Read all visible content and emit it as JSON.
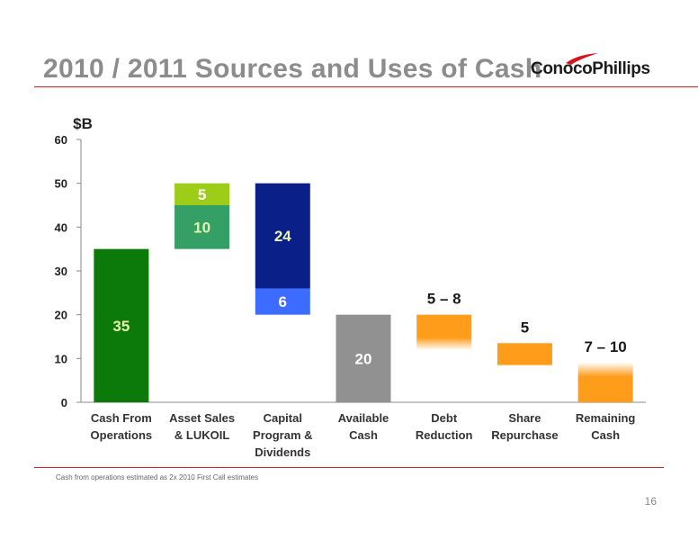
{
  "slide": {
    "title": "2010 / 2011 Sources and Uses of Cash",
    "logo_text": "ConocoPhillips",
    "footnote": "Cash from operations estimated as 2x 2010 First Call estimates",
    "page_number": "16"
  },
  "chart_data": {
    "type": "bar",
    "subtype": "waterfall",
    "ylabel": "$B",
    "ylim": [
      0,
      60
    ],
    "yticks": [
      0,
      10,
      20,
      30,
      40,
      50,
      60
    ],
    "categories": [
      [
        "Cash From",
        "Operations"
      ],
      [
        "Asset Sales",
        "& LUKOIL"
      ],
      [
        "Capital",
        "Program &",
        "Dividends"
      ],
      [
        "Available",
        "Cash"
      ],
      [
        "Debt",
        "Reduction"
      ],
      [
        "Share",
        "Repurchase"
      ],
      [
        "Remaining",
        "Cash"
      ]
    ],
    "segments": [
      {
        "category": 0,
        "bottom": 0,
        "top": 35,
        "label": "35",
        "color": "#0b7a0b",
        "label_color": "#e8f3b0",
        "label_pos": "inside"
      },
      {
        "category": 1,
        "bottom": 35,
        "top": 45,
        "label": "10",
        "color": "#35a065",
        "label_color": "#e8f3b0",
        "label_pos": "inside"
      },
      {
        "category": 1,
        "bottom": 45,
        "top": 50,
        "label": "5",
        "color": "#9dcd18",
        "label_color": "#ffffff",
        "label_pos": "inside"
      },
      {
        "category": 2,
        "bottom": 20,
        "top": 26,
        "label": "6",
        "color": "#3c6cff",
        "label_color": "#ffffff",
        "label_pos": "inside"
      },
      {
        "category": 2,
        "bottom": 26,
        "top": 50,
        "label": "24",
        "color": "#0a1f87",
        "label_color": "#e8f3b0",
        "label_pos": "inside"
      },
      {
        "category": 3,
        "bottom": 0,
        "top": 20,
        "label": "20",
        "color": "#919191",
        "label_color": "#ffffff",
        "label_pos": "inside"
      },
      {
        "category": 4,
        "bottom": 12,
        "top": 20,
        "label": "5 – 8",
        "color": "#ff9c1a",
        "label_color": "#1a1a1a",
        "label_pos": "above",
        "range": [
          5,
          8
        ],
        "fade": "bottom"
      },
      {
        "category": 5,
        "bottom": 8.5,
        "top": 13.5,
        "label": "5",
        "color": "#ff9c1a",
        "label_color": "#1a1a1a",
        "label_pos": "above"
      },
      {
        "category": 6,
        "bottom": 0,
        "top": 9,
        "label": "7 – 10",
        "color": "#ff9c1a",
        "label_color": "#1a1a1a",
        "label_pos": "above",
        "range": [
          7,
          10
        ],
        "fade": "top"
      }
    ]
  }
}
